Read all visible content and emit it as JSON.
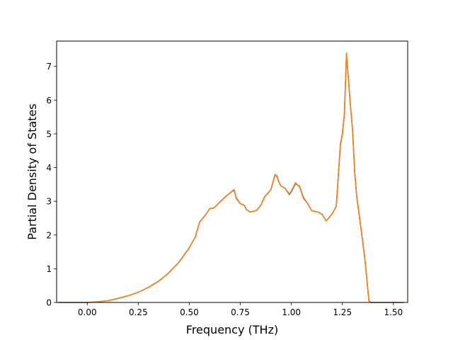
{
  "chart_data": {
    "type": "line",
    "title": "",
    "xlabel": "Frequency (THz)",
    "ylabel": "Partial Density of States",
    "xlim": [
      -0.15,
      1.57
    ],
    "ylim": [
      0,
      7.75
    ],
    "xticks": [
      0.0,
      0.25,
      0.5,
      0.75,
      1.0,
      1.25,
      1.5
    ],
    "xtick_labels": [
      "0.00",
      "0.25",
      "0.50",
      "0.75",
      "1.00",
      "1.25",
      "1.50"
    ],
    "yticks": [
      0,
      1,
      2,
      3,
      4,
      5,
      6,
      7
    ],
    "ytick_labels": [
      "0",
      "1",
      "2",
      "3",
      "4",
      "5",
      "6",
      "7"
    ],
    "grid": false,
    "legend": "none",
    "series": [
      {
        "color": "#1f77b4",
        "x": [
          -0.14,
          0.0,
          0.05,
          0.1,
          0.15,
          0.2,
          0.25,
          0.3,
          0.35,
          0.4,
          0.45,
          0.5,
          0.53,
          0.55,
          0.58,
          0.6,
          0.62,
          0.65,
          0.68,
          0.7,
          0.72,
          0.73,
          0.75,
          0.77,
          0.78,
          0.8,
          0.83,
          0.85,
          0.87,
          0.88,
          0.9,
          0.92,
          0.93,
          0.94,
          0.95,
          0.97,
          0.99,
          1.0,
          1.02,
          1.04,
          1.06,
          1.08,
          1.1,
          1.13,
          1.15,
          1.17,
          1.18,
          1.2,
          1.22,
          1.24,
          1.25,
          1.26,
          1.27,
          1.28,
          1.29,
          1.3,
          1.31,
          1.32,
          1.34,
          1.36,
          1.38,
          1.39,
          1.4,
          1.41,
          1.45,
          1.5,
          1.55
        ],
        "y": [
          0.0,
          0.0,
          0.02,
          0.05,
          0.12,
          0.2,
          0.3,
          0.45,
          0.63,
          0.88,
          1.2,
          1.62,
          1.95,
          2.38,
          2.6,
          2.78,
          2.8,
          2.98,
          3.15,
          3.25,
          3.33,
          3.1,
          2.93,
          2.88,
          2.75,
          2.68,
          2.73,
          2.88,
          3.15,
          3.2,
          3.35,
          3.78,
          3.75,
          3.55,
          3.45,
          3.38,
          3.2,
          3.28,
          3.52,
          3.45,
          3.1,
          2.93,
          2.72,
          2.68,
          2.62,
          2.42,
          2.48,
          2.63,
          2.85,
          4.65,
          5.0,
          5.6,
          7.35,
          6.6,
          5.8,
          5.1,
          3.9,
          3.15,
          2.25,
          1.3,
          0.05,
          0.0,
          0.0,
          0.0,
          0.0,
          0.0,
          0.0
        ]
      },
      {
        "color": "#ff7f0e",
        "x": [
          -0.14,
          0.0,
          0.05,
          0.1,
          0.15,
          0.2,
          0.25,
          0.3,
          0.35,
          0.4,
          0.45,
          0.5,
          0.53,
          0.55,
          0.58,
          0.6,
          0.62,
          0.65,
          0.68,
          0.7,
          0.72,
          0.73,
          0.75,
          0.77,
          0.78,
          0.8,
          0.83,
          0.85,
          0.87,
          0.88,
          0.9,
          0.92,
          0.93,
          0.94,
          0.95,
          0.97,
          0.99,
          1.0,
          1.02,
          1.04,
          1.06,
          1.08,
          1.1,
          1.13,
          1.15,
          1.17,
          1.18,
          1.2,
          1.22,
          1.24,
          1.25,
          1.26,
          1.27,
          1.28,
          1.29,
          1.3,
          1.31,
          1.32,
          1.34,
          1.36,
          1.38,
          1.39,
          1.4,
          1.41,
          1.45,
          1.5,
          1.55
        ],
        "y": [
          0.0,
          0.0,
          0.02,
          0.05,
          0.12,
          0.2,
          0.3,
          0.45,
          0.63,
          0.88,
          1.2,
          1.62,
          1.95,
          2.38,
          2.6,
          2.78,
          2.8,
          2.98,
          3.15,
          3.25,
          3.35,
          3.08,
          2.93,
          2.88,
          2.75,
          2.68,
          2.73,
          2.88,
          3.15,
          3.2,
          3.35,
          3.8,
          3.72,
          3.55,
          3.45,
          3.38,
          3.22,
          3.3,
          3.55,
          3.43,
          3.08,
          2.93,
          2.72,
          2.68,
          2.62,
          2.42,
          2.48,
          2.63,
          2.85,
          4.7,
          5.0,
          5.6,
          7.4,
          6.6,
          5.8,
          5.1,
          3.9,
          3.15,
          2.25,
          1.3,
          0.05,
          0.0,
          0.0,
          0.0,
          0.0,
          0.0,
          0.0
        ]
      }
    ]
  }
}
